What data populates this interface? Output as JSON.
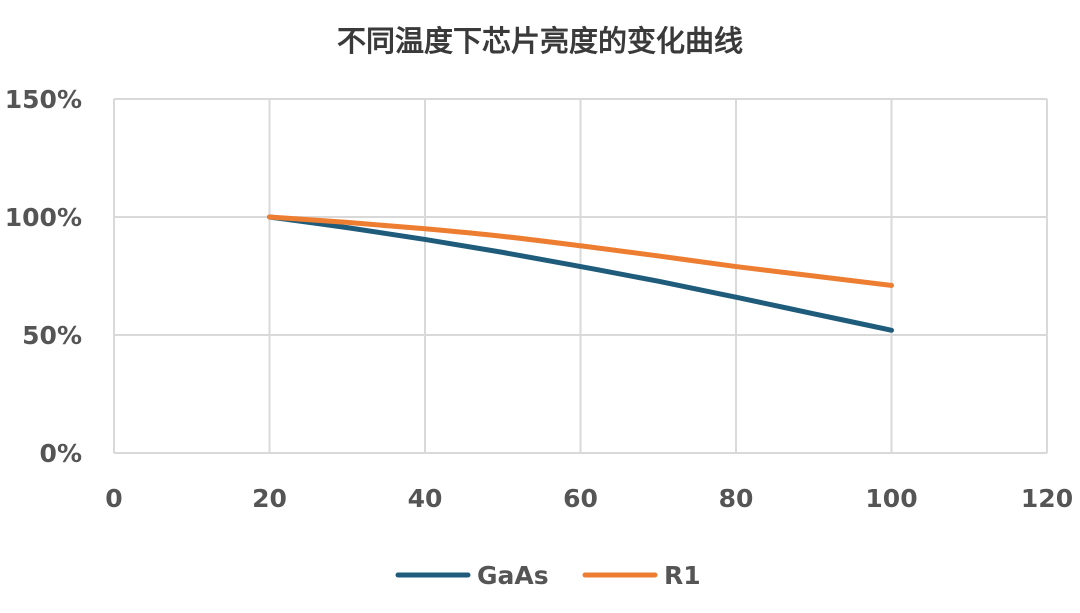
{
  "chart_data": {
    "type": "line",
    "title": "不同温度下芯片亮度的变化曲线",
    "xlabel": "",
    "ylabel": "",
    "xlim": [
      0,
      120
    ],
    "ylim": [
      0,
      1.5
    ],
    "x_ticks": [
      "0",
      "20",
      "40",
      "60",
      "80",
      "100",
      "120"
    ],
    "y_ticks": [
      "0%",
      "50%",
      "100%",
      "150%"
    ],
    "grid": true,
    "legend_position": "bottom",
    "series": [
      {
        "name": "GaAs",
        "color": "#1f5b7a",
        "x": [
          20,
          30,
          40,
          50,
          60,
          70,
          80,
          90,
          100
        ],
        "y": [
          1.0,
          0.955,
          0.905,
          0.85,
          0.79,
          0.728,
          0.66,
          0.59,
          0.52
        ]
      },
      {
        "name": "R1",
        "color": "#ed7d31",
        "x": [
          20,
          30,
          40,
          50,
          60,
          70,
          80,
          90,
          100
        ],
        "y": [
          1.0,
          0.977,
          0.95,
          0.918,
          0.878,
          0.835,
          0.79,
          0.75,
          0.71
        ]
      }
    ]
  }
}
